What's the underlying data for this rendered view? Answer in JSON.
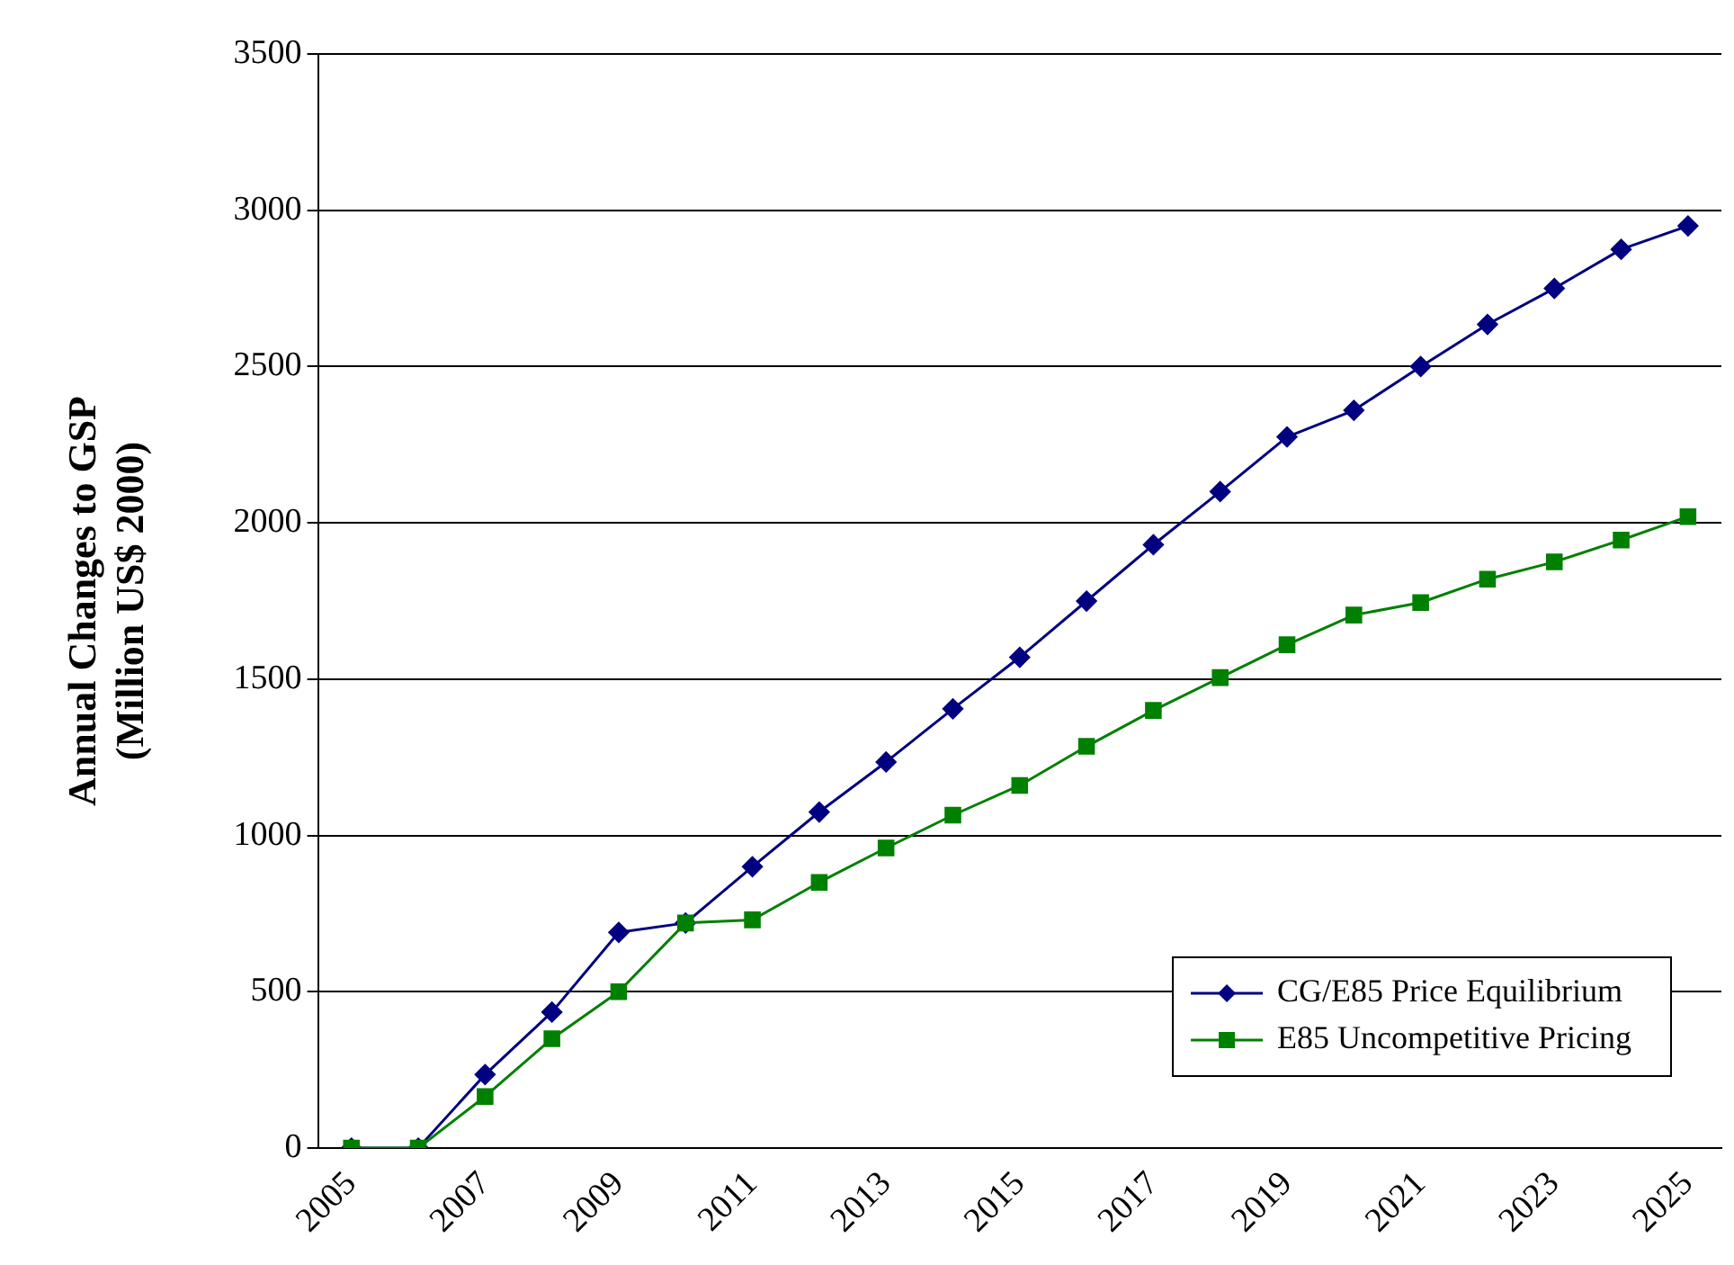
{
  "chart_data": {
    "type": "line",
    "ylabel": "Annual Changes to GSP\n(Million US$ 2000)",
    "categories": [
      "2005",
      null,
      "2007",
      null,
      "2009",
      null,
      "2011",
      null,
      "2013",
      null,
      "2015",
      null,
      "2017",
      null,
      "2019",
      null,
      "2021",
      null,
      "2023",
      null,
      "2025"
    ],
    "series": [
      {
        "name": "CG/E85 Price Equilibrium",
        "color": "#000080",
        "marker": "diamond",
        "values": [
          0,
          0,
          235,
          435,
          690,
          720,
          900,
          1075,
          1235,
          1405,
          1570,
          1750,
          1930,
          2100,
          2275,
          2360,
          2500,
          2635,
          2750,
          2875,
          2950
        ]
      },
      {
        "name": "E85 Uncompetitive Pricing",
        "color": "#008000",
        "marker": "square",
        "values": [
          0,
          0,
          165,
          350,
          500,
          720,
          730,
          850,
          960,
          1065,
          1160,
          1285,
          1400,
          1505,
          1610,
          1705,
          1745,
          1820,
          1875,
          1945,
          2020
        ]
      }
    ],
    "ylim": [
      0,
      3500
    ],
    "yticks": [
      0,
      500,
      1000,
      1500,
      2000,
      2500,
      3000,
      3500
    ],
    "grid": "y",
    "legend": "bottom right",
    "line_style": "solid"
  }
}
